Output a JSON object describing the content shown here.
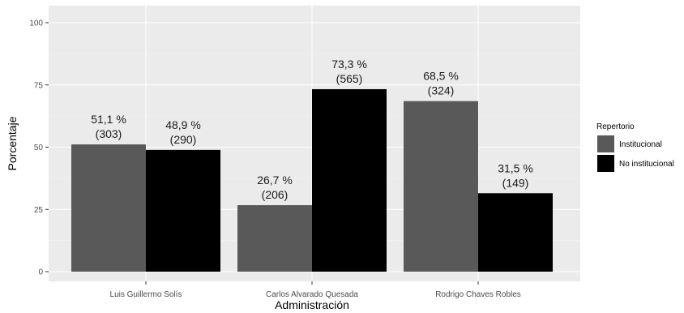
{
  "chart_data": {
    "type": "bar",
    "title": "",
    "xlabel": "Administración",
    "ylabel": "Porcentaje",
    "ylim": [
      0,
      100
    ],
    "yticks": [
      0,
      25,
      50,
      75,
      100
    ],
    "categories": [
      "Luis Guillermo Solís",
      "Carlos Alvarado Quesada",
      "Rodrigo Chaves Robles"
    ],
    "series": [
      {
        "name": "Institucional",
        "color": "#595959",
        "values": [
          51.1,
          26.7,
          68.5
        ],
        "counts": [
          303,
          206,
          324
        ],
        "pct_labels": [
          "51,1 %",
          "26,7 %",
          "68,5 %"
        ],
        "count_labels": [
          "(303)",
          "(206)",
          "(324)"
        ]
      },
      {
        "name": "No institucional",
        "color": "#000000",
        "values": [
          48.9,
          73.3,
          31.5
        ],
        "counts": [
          290,
          565,
          149
        ],
        "pct_labels": [
          "48,9 %",
          "73,3 %",
          "31,5 %"
        ],
        "count_labels": [
          "(290)",
          "(565)",
          "(149)"
        ]
      }
    ],
    "legend": {
      "title": "Repertorio",
      "position": "right"
    },
    "grid": true,
    "panel_background": "#ebebeb"
  }
}
